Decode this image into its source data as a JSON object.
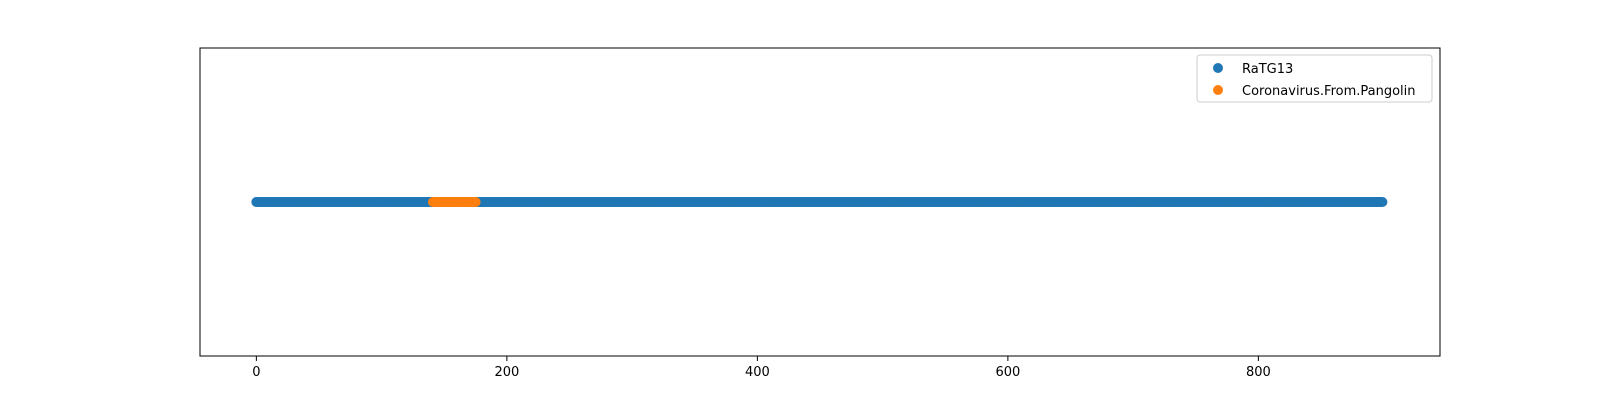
{
  "chart_data": {
    "type": "scatter",
    "title": "",
    "xlabel": "",
    "ylabel": "",
    "xlim": [
      -45,
      945
    ],
    "ylim": [
      -1,
      1
    ],
    "grid": false,
    "legend": "top-right",
    "yaxis_visible": false,
    "x_ticks": [
      0,
      200,
      400,
      600,
      800
    ],
    "series": [
      {
        "name": "RaTG13",
        "color": "#1f77b4",
        "x_start": 0,
        "x_end": 899,
        "x_step": 1,
        "y": 0
      },
      {
        "name": "Coronavirus.From.Pangolin",
        "color": "#ff7f0e",
        "x_start": 141,
        "x_end": 175,
        "x_step": 1,
        "y": 0
      }
    ]
  }
}
